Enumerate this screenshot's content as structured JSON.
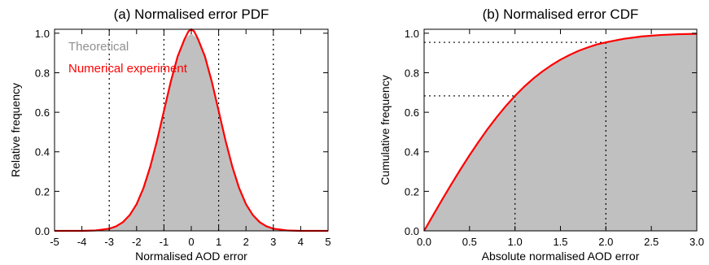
{
  "chart_data": [
    {
      "type": "area",
      "title": "(a) Normalised error PDF",
      "xlabel": "Normalised AOD error",
      "ylabel": "Relative frequency",
      "xlim": [
        -5,
        5
      ],
      "ylim": [
        0,
        1.02
      ],
      "x_ticks": [
        "-5",
        "-4",
        "-3",
        "-2",
        "-1",
        "0",
        "1",
        "2",
        "3",
        "4",
        "5"
      ],
      "y_ticks": [
        "0.0",
        "0.2",
        "0.4",
        "0.6",
        "0.8",
        "1.0"
      ],
      "reference_lines_x": [
        -3,
        -1,
        1,
        3
      ],
      "legend_position": "top-left",
      "series": [
        {
          "name": "Theoretical",
          "style": "filled-area",
          "color": "#c0c0c0",
          "x": [
            -5,
            -4.5,
            -4,
            -3.5,
            -3,
            -2.75,
            -2.5,
            -2.25,
            -2,
            -1.75,
            -1.5,
            -1.25,
            -1,
            -0.75,
            -0.5,
            -0.25,
            0,
            0.25,
            0.5,
            0.75,
            1,
            1.25,
            1.5,
            1.75,
            2,
            2.25,
            2.5,
            2.75,
            3,
            3.5,
            4,
            4.5,
            5
          ],
          "y": [
            0.0,
            0.0,
            0.0,
            0.002,
            0.011,
            0.023,
            0.044,
            0.08,
            0.135,
            0.216,
            0.325,
            0.458,
            0.607,
            0.755,
            0.882,
            0.969,
            1.0,
            0.969,
            0.882,
            0.755,
            0.607,
            0.458,
            0.325,
            0.216,
            0.135,
            0.08,
            0.044,
            0.023,
            0.011,
            0.002,
            0.0,
            0.0,
            0.0
          ]
        },
        {
          "name": "Numerical experiment",
          "style": "line",
          "color": "#ff0000",
          "x": [
            -5,
            -4.5,
            -4,
            -3.5,
            -3,
            -2.75,
            -2.5,
            -2.25,
            -2,
            -1.75,
            -1.5,
            -1.25,
            -1,
            -0.75,
            -0.5,
            -0.25,
            -0.1,
            0,
            0.1,
            0.25,
            0.5,
            0.75,
            1,
            1.25,
            1.5,
            1.75,
            2,
            2.25,
            2.5,
            2.75,
            3,
            3.5,
            4,
            4.5,
            5
          ],
          "y": [
            0.0,
            0.0,
            0.0,
            0.002,
            0.011,
            0.023,
            0.044,
            0.08,
            0.135,
            0.216,
            0.325,
            0.458,
            0.607,
            0.755,
            0.882,
            0.969,
            1.01,
            1.02,
            1.01,
            0.969,
            0.882,
            0.755,
            0.607,
            0.458,
            0.325,
            0.216,
            0.135,
            0.08,
            0.044,
            0.023,
            0.011,
            0.002,
            0.0,
            0.0,
            0.0
          ]
        }
      ]
    },
    {
      "type": "area",
      "title": "(b) Normalised error CDF",
      "xlabel": "Absolute normalised AOD error",
      "ylabel": "Cumulative frequency",
      "xlim": [
        0,
        3
      ],
      "ylim": [
        0,
        1.02
      ],
      "x_ticks": [
        "0.0",
        "0.5",
        "1.0",
        "1.5",
        "2.0",
        "2.5",
        "3.0"
      ],
      "y_ticks": [
        "0.0",
        "0.2",
        "0.4",
        "0.6",
        "0.8",
        "1.0"
      ],
      "reference_points": [
        {
          "x": 1.0,
          "y": 0.683
        },
        {
          "x": 2.0,
          "y": 0.954
        }
      ],
      "series": [
        {
          "name": "Theoretical",
          "style": "filled-area",
          "color": "#c0c0c0",
          "x": [
            0,
            0.1,
            0.2,
            0.3,
            0.4,
            0.5,
            0.6,
            0.7,
            0.8,
            0.9,
            1.0,
            1.1,
            1.2,
            1.3,
            1.4,
            1.5,
            1.6,
            1.7,
            1.8,
            1.9,
            2.0,
            2.2,
            2.4,
            2.6,
            2.8,
            3.0
          ],
          "y": [
            0.0,
            0.08,
            0.159,
            0.236,
            0.311,
            0.383,
            0.451,
            0.516,
            0.576,
            0.632,
            0.683,
            0.729,
            0.77,
            0.806,
            0.838,
            0.866,
            0.89,
            0.911,
            0.928,
            0.943,
            0.954,
            0.972,
            0.984,
            0.991,
            0.995,
            0.997
          ]
        },
        {
          "name": "Numerical experiment",
          "style": "line",
          "color": "#ff0000",
          "x": [
            0,
            0.1,
            0.2,
            0.3,
            0.4,
            0.5,
            0.6,
            0.7,
            0.8,
            0.9,
            1.0,
            1.1,
            1.2,
            1.3,
            1.4,
            1.5,
            1.6,
            1.7,
            1.8,
            1.9,
            2.0,
            2.2,
            2.4,
            2.6,
            2.8,
            3.0
          ],
          "y": [
            0.0,
            0.08,
            0.159,
            0.236,
            0.311,
            0.383,
            0.451,
            0.516,
            0.576,
            0.632,
            0.683,
            0.729,
            0.77,
            0.806,
            0.838,
            0.866,
            0.89,
            0.911,
            0.928,
            0.943,
            0.954,
            0.972,
            0.984,
            0.991,
            0.995,
            0.997
          ]
        }
      ]
    }
  ]
}
